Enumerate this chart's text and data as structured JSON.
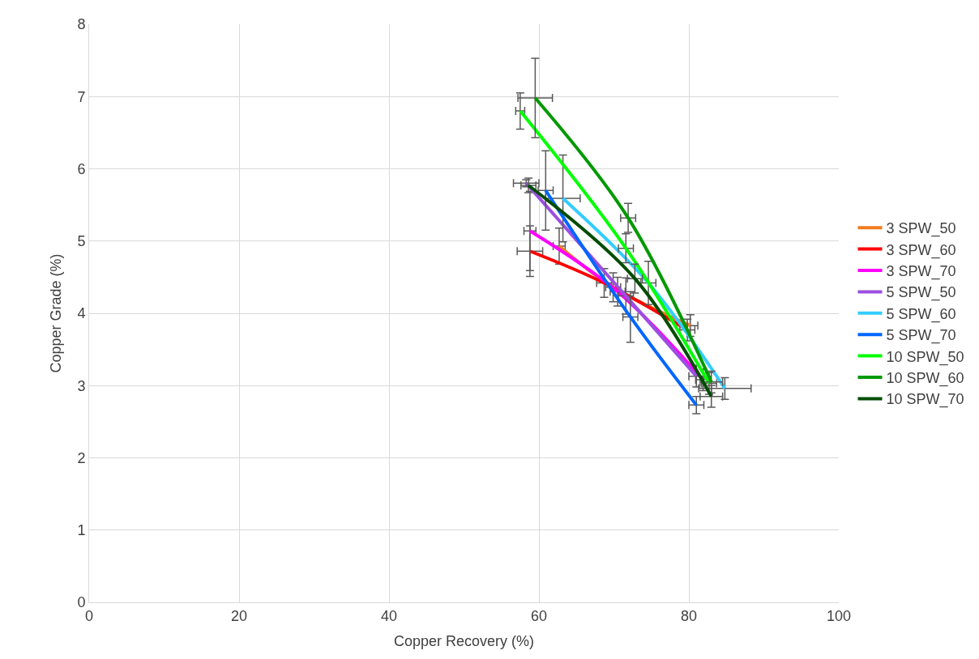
{
  "chart_data": {
    "type": "line",
    "xlabel": "Copper Recovery (%)",
    "ylabel": "Copper Grade (%)",
    "xlim": [
      0,
      100
    ],
    "xticks": [
      0,
      20,
      40,
      60,
      80,
      100
    ],
    "ylim": [
      0,
      8
    ],
    "yticks": [
      0,
      1,
      2,
      3,
      4,
      5,
      6,
      7,
      8
    ],
    "grid": true,
    "legend": "right",
    "marker": "none",
    "line_style": "solid",
    "series": [
      {
        "name": "3 SPW_50",
        "color": "#f47b20",
        "x": [
          62.7,
          69.9,
          80.2
        ],
        "values": [
          4.93,
          4.36,
          3.83
        ],
        "errors": [
          0.25,
          0.2,
          0.15
        ],
        "xerrors": [
          0.8,
          1.0,
          1.0
        ]
      },
      {
        "name": "3 SPW_60",
        "color": "#ff0000",
        "x": [
          58.8,
          68.7,
          79.8
        ],
        "values": [
          4.86,
          4.42,
          3.77
        ],
        "errors": [
          0.35,
          0.2,
          0.15
        ],
        "xerrors": [
          1.7,
          1.0,
          1.0
        ]
      },
      {
        "name": "3 SPW_70",
        "color": "#ff00ff",
        "x": [
          58.8,
          70.5,
          81.9
        ],
        "values": [
          5.14,
          4.3,
          3.08
        ],
        "errors": [
          0.55,
          0.2,
          0.15
        ],
        "xerrors": [
          0.8,
          1.0,
          1.0
        ]
      },
      {
        "name": "5 SPW_50",
        "color": "#9b4fe0",
        "x": [
          58.3,
          71.6,
          81.0
        ],
        "values": [
          5.8,
          4.24,
          3.13
        ],
        "errors": [
          0.05,
          0.25,
          0.15
        ],
        "xerrors": [
          1.7,
          1.0,
          1.0
        ]
      },
      {
        "name": "5 SPW_60",
        "color": "#33ccff",
        "x": [
          63.2,
          74.6,
          84.8
        ],
        "values": [
          5.59,
          4.42,
          2.96
        ],
        "errors": [
          0.6,
          0.3,
          0.15
        ],
        "xerrors": [
          2.3,
          1.0,
          3.5
        ]
      },
      {
        "name": "5 SPW_70",
        "color": "#0066ff",
        "x": [
          60.9,
          72.2,
          81.0
        ],
        "values": [
          5.7,
          3.95,
          2.73
        ],
        "errors": [
          0.55,
          0.35,
          0.12
        ],
        "xerrors": [
          1.0,
          1.0,
          1.0
        ]
      },
      {
        "name": "10 SPW_50",
        "color": "#00ff00",
        "x": [
          57.5,
          71.6,
          82.7
        ],
        "values": [
          6.8,
          4.9,
          3.03
        ],
        "errors": [
          0.25,
          0.2,
          0.15
        ],
        "xerrors": [
          0.6,
          1.0,
          1.0
        ]
      },
      {
        "name": "10 SPW_60",
        "color": "#009900",
        "x": [
          59.5,
          71.9,
          83.0
        ],
        "values": [
          6.98,
          5.32,
          3.05
        ],
        "errors": [
          0.55,
          0.2,
          0.15
        ],
        "xerrors": [
          2.3,
          1.0,
          1.5
        ]
      },
      {
        "name": "10 SPW_70",
        "color": "#004d00",
        "x": [
          58.6,
          72.8,
          83.0
        ],
        "values": [
          5.77,
          4.48,
          2.85
        ],
        "errors": [
          0.1,
          0.2,
          0.15
        ],
        "xerrors": [
          1.0,
          1.0,
          1.5
        ]
      }
    ]
  }
}
